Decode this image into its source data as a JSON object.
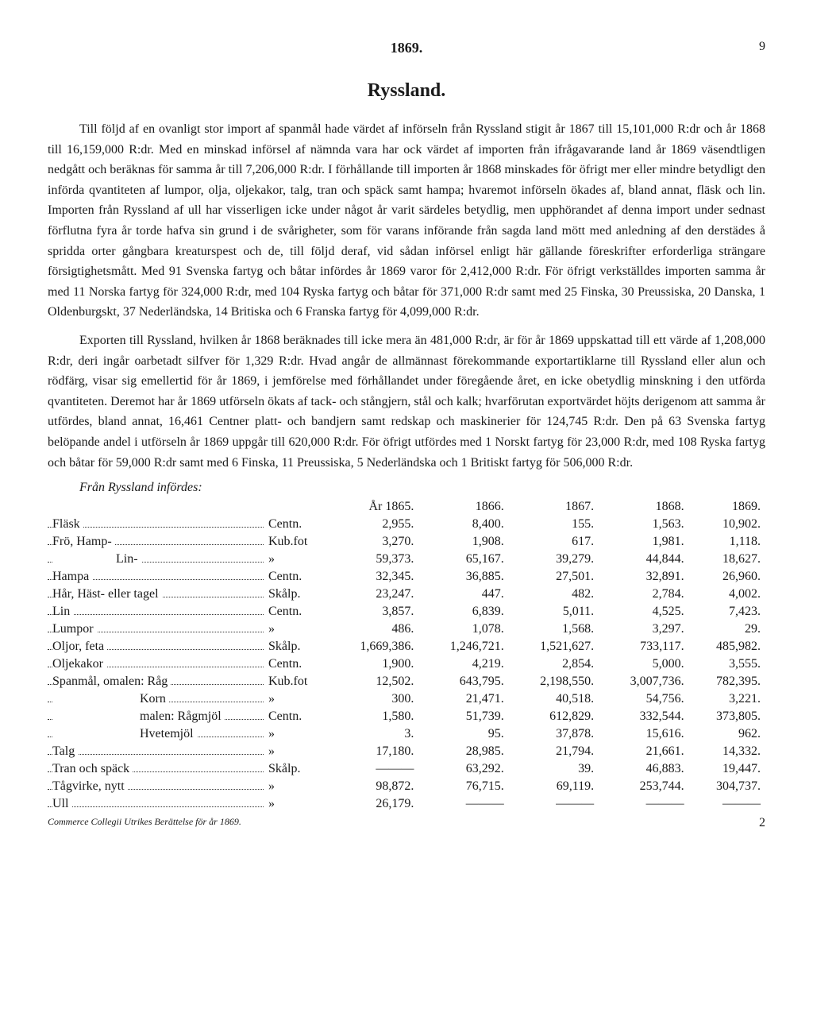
{
  "header": {
    "year": "1869.",
    "pagenum": "9"
  },
  "title": "Ryssland.",
  "paragraphs": [
    "Till följd af en ovanligt stor import af spanmål hade värdet af införseln från Ryssland stigit år 1867 till 15,101,000 R:dr och år 1868 till 16,159,000 R:dr. Med en minskad införsel af nämnda vara har ock värdet af importen från ifrågavarande land år 1869 väsendtligen nedgått och beräknas för samma år till 7,206,000 R:dr. I förhållande till importen år 1868 minskades för öfrigt mer eller mindre betydligt den införda qvantiteten af lumpor, olja, oljekakor, talg, tran och späck samt hampa; hvaremot införseln ökades af, bland annat, fläsk och lin. Importen från Ryssland af ull har visserligen icke under något år varit särdeles betydlig, men upphörandet af denna import under sednast förflutna fyra år torde hafva sin grund i de svårigheter, som för varans införande från sagda land mött med anledning af den derstädes å spridda orter gångbara kreaturspest och de, till följd deraf, vid sådan införsel enligt här gällande föreskrifter erforderliga strängare försigtighets­mått. Med 91 Svenska fartyg och båtar infördes år 1869 varor för 2,412,000 R:dr. För öfrigt verkställdes importen samma år med 11 Norska fartyg för 324,000 R:dr, med 104 Ryska fartyg och båtar för 371,000 R:dr samt med 25 Finska, 30 Preussiska, 20 Danska, 1 Oldenburgskt, 37 Nederländska, 14 Britiska och 6 Franska fartyg för 4,099,000 R:dr.",
    "Exporten till Ryssland, hvilken år 1868 beräknades till icke mera än 481,000 R:dr, är för år 1869 uppskattad till ett värde af 1,208,000 R:dr, deri ingår oarbetadt silfver för 1,329 R:dr. Hvad angår de all­männast förekommande exportartiklarne till Ryssland eller alun och rödfärg, visar sig emellertid för år 1869, i jemförelse med förhållandet under föregående året, en icke obetydlig minskning i den utförda qvantiteten. Deremot har år 1869 utförseln ökats af tack- och stångjern, stål och kalk; hvarförutan exportvärdet höjts derigenom att samma år utfördes, bland annat, 16,461 Centner platt- och bandjern samt redskap och maski­nerier för 124,745 R:dr. Den på 63 Svenska fartyg belöpande andel i utförseln år 1869 uppgår till 620,000 R:dr. För öfrigt utfördes med 1 Norskt fartyg för 23,000 R:dr, med 108 Ryska fartyg och båtar för 59,000 R:dr samt med 6 Finska, 11 Preussiska, 5 Nederländska och 1 Britiskt fartyg för 506,000 R:dr."
  ],
  "tableIntro": "Från Ryssland infördes:",
  "columns": [
    "År 1865.",
    "1866.",
    "1867.",
    "1868.",
    "1869."
  ],
  "rows": [
    {
      "name": "Fläsk",
      "unit": "Centn.",
      "v": [
        "2,955.",
        "8,400.",
        "155.",
        "1,563.",
        "10,902."
      ]
    },
    {
      "name": "Frö, Hamp-",
      "unit": "Kub.fot",
      "v": [
        "3,270.",
        "1,908.",
        "617.",
        "1,981.",
        "1,118."
      ]
    },
    {
      "name": "Lin-",
      "indent": 1,
      "unit": "»",
      "v": [
        "59,373.",
        "65,167.",
        "39,279.",
        "44,844.",
        "18,627."
      ]
    },
    {
      "name": "Hampa",
      "unit": "Centn.",
      "v": [
        "32,345.",
        "36,885.",
        "27,501.",
        "32,891.",
        "26,960."
      ]
    },
    {
      "name": "Hår, Häst- eller tagel",
      "unit": "Skålp.",
      "v": [
        "23,247.",
        "447.",
        "482.",
        "2,784.",
        "4,002."
      ]
    },
    {
      "name": "Lin",
      "unit": "Centn.",
      "v": [
        "3,857.",
        "6,839.",
        "5,011.",
        "4,525.",
        "7,423."
      ]
    },
    {
      "name": "Lumpor",
      "unit": "»",
      "v": [
        "486.",
        "1,078.",
        "1,568.",
        "3,297.",
        "29."
      ]
    },
    {
      "name": "Oljor, feta",
      "unit": "Skålp.",
      "v": [
        "1,669,386.",
        "1,246,721.",
        "1,521,627.",
        "733,117.",
        "485,982."
      ]
    },
    {
      "name": "Oljekakor",
      "unit": "Centn.",
      "v": [
        "1,900.",
        "4,219.",
        "2,854.",
        "5,000.",
        "3,555."
      ]
    },
    {
      "name": "Spanmål, omalen: Råg",
      "unit": "Kub.fot",
      "v": [
        "12,502.",
        "643,795.",
        "2,198,550.",
        "3,007,736.",
        "782,395."
      ]
    },
    {
      "name": "Korn",
      "indent": 2,
      "unit": "»",
      "v": [
        "300.",
        "21,471.",
        "40,518.",
        "54,756.",
        "3,221."
      ]
    },
    {
      "name": "malen: Rågmjöl",
      "indent": 2,
      "unit": "Centn.",
      "v": [
        "1,580.",
        "51,739.",
        "612,829.",
        "332,544.",
        "373,805."
      ]
    },
    {
      "name": "Hvetemjöl",
      "indent": 2,
      "unit": "»",
      "v": [
        "3.",
        "95.",
        "37,878.",
        "15,616.",
        "962."
      ]
    },
    {
      "name": "Talg",
      "unit": "»",
      "v": [
        "17,180.",
        "28,985.",
        "21,794.",
        "21,661.",
        "14,332."
      ]
    },
    {
      "name": "Tran och späck",
      "unit": "Skålp.",
      "v": [
        "———",
        "63,292.",
        "39.",
        "46,883.",
        "19,447."
      ]
    },
    {
      "name": "Tågvirke, nytt",
      "unit": "»",
      "v": [
        "98,872.",
        "76,715.",
        "69,119.",
        "253,744.",
        "304,737."
      ]
    },
    {
      "name": "Ull",
      "unit": "»",
      "v": [
        "26,179.",
        "———",
        "———",
        "———",
        "———"
      ]
    }
  ],
  "footnote": "Commerce Collegii Utrikes Berättelse för år 1869.",
  "signature": "2"
}
